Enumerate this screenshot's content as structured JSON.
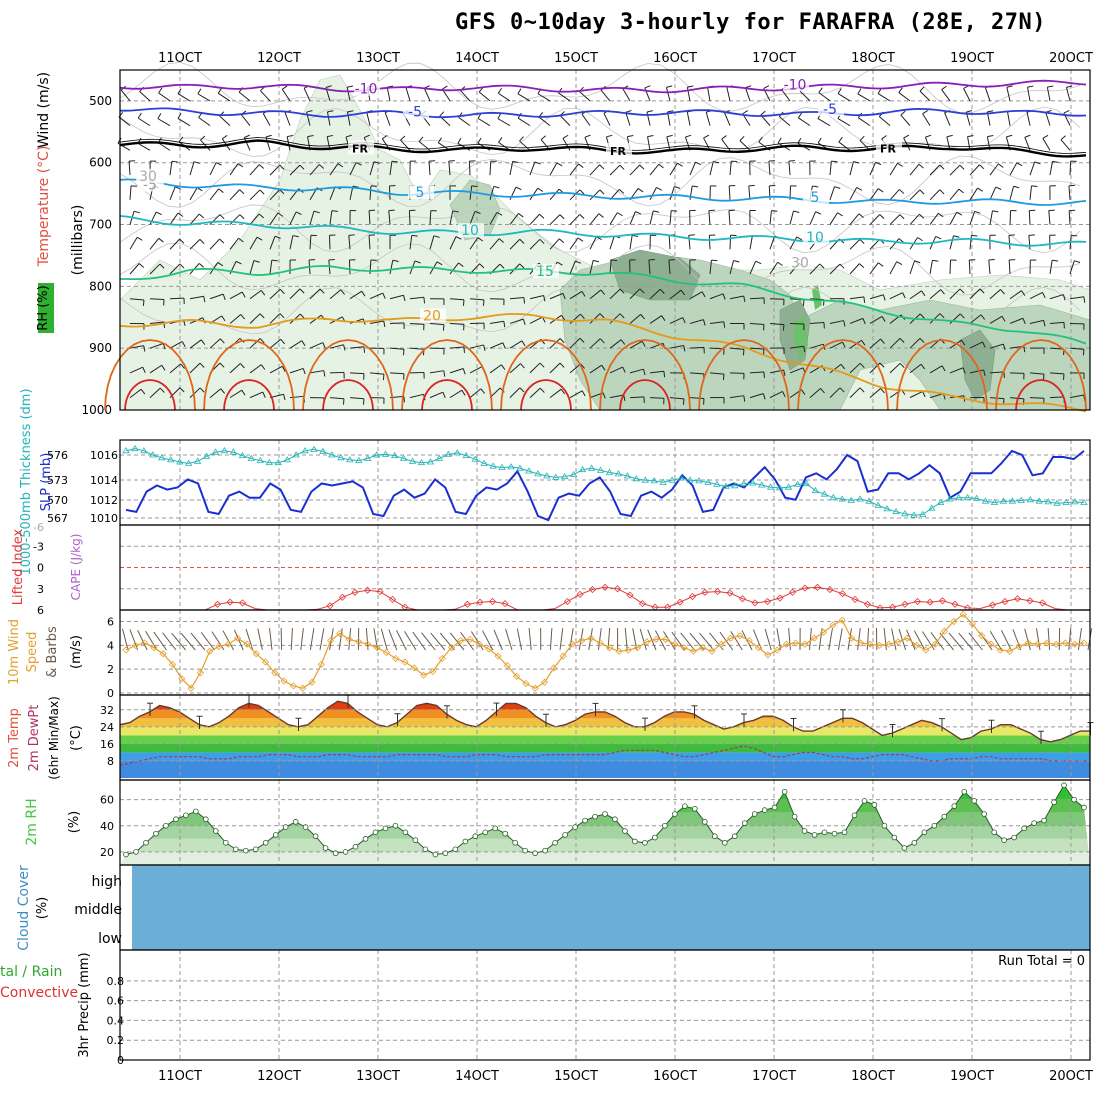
{
  "title": "GFS 0~10day 3-hourly for FARAFRA (28E, 27N)",
  "colors": {
    "temp_minus10": "#8a1fb5",
    "temp_minus5": "#2b3fd6",
    "temp_fr": "#000000",
    "temp_5": "#1e9be0",
    "temp_10": "#1fb8c0",
    "temp_15": "#22c27a",
    "temp_20": "#e49a1a",
    "temp_25": "#e0651a",
    "temp_30": "#dd2222",
    "rh_light": "#e6f3e4",
    "rh_mid": "#bcd6bd",
    "rh_dark": "#8faf92",
    "rh_max": "#6cc26a",
    "slp": "#1b2fd0",
    "thickness": "#25b4b8",
    "lifted": "#e03a3a",
    "wind10": "#e4a030",
    "cloud": "#6baed6",
    "rh2m": "#44c844"
  },
  "chart_data": [
    {
      "id": "upper_air",
      "type": "contour",
      "x_ticks": [
        "11OCT",
        "12OCT",
        "13OCT",
        "14OCT",
        "15OCT",
        "16OCT",
        "17OCT",
        "18OCT",
        "19OCT",
        "20OCT"
      ],
      "y_ticks": [
        "500",
        "600",
        "700",
        "800",
        "900",
        "1000"
      ],
      "ylabel": "(millibars)",
      "side_labels": {
        "rh": "RH (%)",
        "temp": "Temperature (°C)",
        "wind": "Wind (m/s)"
      },
      "contour_labels": [
        "-10",
        "-10",
        "-5",
        "-5",
        "FR",
        "FR",
        "FR",
        "-5",
        "5",
        "5",
        "10",
        "10",
        "15",
        "20",
        "30",
        "30"
      ],
      "isotherms": [
        {
          "name": "-10",
          "mb": [
            476,
            478,
            476,
            480,
            482,
            478,
            480,
            483,
            482,
            480,
            478,
            476,
            474,
            472,
            470
          ]
        },
        {
          "name": "-5",
          "mb": [
            512,
            518,
            520,
            522,
            520,
            524,
            522,
            520,
            518,
            520,
            522,
            518,
            516,
            520,
            520
          ]
        },
        {
          "name": "FR",
          "mb": [
            570,
            572,
            568,
            575,
            578,
            580,
            576,
            580,
            582,
            578,
            576,
            578,
            574,
            582,
            588
          ]
        },
        {
          "name": "5",
          "mb": [
            630,
            636,
            640,
            642,
            648,
            650,
            652,
            654,
            656,
            658,
            660,
            664,
            662,
            664,
            665
          ]
        },
        {
          "name": "10",
          "mb": [
            690,
            698,
            700,
            706,
            712,
            714,
            712,
            716,
            720,
            722,
            724,
            728,
            726,
            730,
            732
          ]
        },
        {
          "name": "15",
          "mb": [
            790,
            775,
            778,
            770,
            772,
            774,
            776,
            778,
            790,
            800,
            820,
            840,
            860,
            870,
            895
          ]
        },
        {
          "name": "20",
          "mb": [
            862,
            858,
            864,
            852,
            856,
            850,
            848,
            856,
            880,
            900,
            930,
            960,
            980,
            990,
            1000
          ]
        }
      ]
    },
    {
      "id": "slp_thickness",
      "type": "line",
      "ylabel_left": "1000-500mb Thickness (dm)",
      "ylabel_right": "SLP (mb)",
      "y_ticks_thickness": [
        "576",
        "573",
        "570",
        "567"
      ],
      "y_ticks_slp": [
        "1016",
        "1014",
        "1012",
        "1010"
      ],
      "series": [
        {
          "name": "SLP (mb)",
          "values": [
            1010.6,
            1010.4,
            1012.4,
            1013.0,
            1012.6,
            1012.8,
            1013.6,
            1013.2,
            1010.4,
            1010.2,
            1012.0,
            1012.4,
            1011.8,
            1011.8,
            1013.2,
            1012.6,
            1010.6,
            1010.4,
            1012.4,
            1013.2,
            1013.0,
            1013.2,
            1013.4,
            1012.8,
            1010.2,
            1010.0,
            1012.0,
            1012.6,
            1011.8,
            1012.2,
            1013.6,
            1012.8,
            1010.4,
            1010.2,
            1012.0,
            1012.8,
            1012.6,
            1013.2,
            1014.4,
            1012.4,
            1010.0,
            1009.6,
            1011.8,
            1012.2,
            1012.0,
            1013.2,
            1013.8,
            1012.4,
            1010.2,
            1010.0,
            1012.0,
            1012.4,
            1011.8,
            1012.6,
            1014.0,
            1013.0,
            1010.4,
            1010.6,
            1012.8,
            1013.2,
            1012.8,
            1013.8,
            1014.8,
            1013.6,
            1011.8,
            1011.6,
            1013.8,
            1014.2,
            1013.6,
            1014.6,
            1016.0,
            1015.4,
            1012.4,
            1012.6,
            1014.2,
            1014.2,
            1013.6,
            1014.2,
            1015.0,
            1014.2,
            1011.8,
            1012.4,
            1014.2,
            1014.2,
            1014.2,
            1015.2,
            1016.4,
            1016.0,
            1014.0,
            1014.2,
            1015.8,
            1015.8,
            1015.6,
            1016.4
          ]
        },
        {
          "name": "Thickness (dm)",
          "values": [
            576.6,
            576.9,
            576.6,
            576.0,
            575.6,
            575.3,
            575.0,
            574.8,
            575.1,
            575.8,
            576.4,
            576.6,
            576.4,
            575.9,
            575.5,
            575.2,
            574.9,
            574.9,
            575.3,
            576.0,
            576.6,
            576.8,
            576.5,
            576.0,
            575.6,
            575.3,
            575.2,
            575.5,
            576.0,
            576.1,
            575.9,
            575.5,
            575.1,
            574.9,
            575.0,
            575.5,
            576.1,
            576.3,
            575.9,
            575.4,
            574.8,
            574.4,
            574.2,
            574.3,
            574.1,
            573.7,
            573.3,
            573.0,
            572.8,
            572.9,
            573.2,
            573.9,
            574.1,
            573.8,
            573.5,
            573.3,
            573.0,
            572.6,
            572.4,
            572.3,
            572.1,
            572.4,
            572.7,
            572.4,
            572.3,
            572.1,
            571.8,
            571.5,
            571.6,
            571.9,
            572.0,
            571.7,
            571.4,
            571.3,
            571.4,
            571.8,
            571.9,
            570.9,
            570.4,
            569.9,
            569.7,
            569.5,
            569.7,
            569.4,
            568.8,
            568.3,
            567.9,
            567.6,
            567.4,
            567.5,
            568.4,
            569.2,
            569.7,
            569.9,
            569.9,
            569.8,
            569.4,
            569.2,
            569.4,
            569.4,
            569.5,
            569.6,
            569.4,
            569.3,
            569.1,
            569.2,
            569.3,
            569.2
          ]
        }
      ]
    },
    {
      "id": "lifted_cape",
      "type": "line",
      "ylabel_left": "Lifted Index",
      "ylabel_right": "CAPE (J/kg)",
      "y_ticks": [
        "-3",
        "0",
        "3",
        "6"
      ],
      "y_range": [
        -6,
        6
      ],
      "series": [
        {
          "name": "Lifted Index",
          "values": [
            6.6,
            6.3,
            6.1,
            6.5,
            7.0,
            6.9,
            6.0,
            5.2,
            4.9,
            5.0,
            5.8,
            6.4,
            6.6,
            6.3,
            6.0,
            5.9,
            5.4,
            4.2,
            3.5,
            3.2,
            3.4,
            4.5,
            5.6,
            6.4,
            6.3,
            6.4,
            5.9,
            5.2,
            4.9,
            4.8,
            5.1,
            6.0,
            6.6,
            6.6,
            5.8,
            4.8,
            3.8,
            3.1,
            2.8,
            3.0,
            3.9,
            5.1,
            5.6,
            5.6,
            4.9,
            4.1,
            3.5,
            3.4,
            3.6,
            4.4,
            5.0,
            4.8,
            4.3,
            3.5,
            2.9,
            2.8,
            3.1,
            3.7,
            4.5,
            5.2,
            5.7,
            5.6,
            5.2,
            4.8,
            4.9,
            4.7,
            5.2,
            5.7,
            5.8,
            5.3,
            4.8,
            4.4,
            4.7,
            5.0,
            5.8,
            6.3,
            6.5
          ]
        }
      ]
    },
    {
      "id": "wind10m",
      "type": "line",
      "ylabel": "10m Wind Speed & Barbs (m/s)",
      "y_ticks": [
        "6",
        "4",
        "2",
        "0"
      ],
      "y_range": [
        0,
        7
      ],
      "series": [
        {
          "name": "10m Wind Speed",
          "values": [
            3.6,
            4.0,
            4.2,
            3.8,
            3.3,
            2.4,
            1.2,
            0.4,
            1.7,
            3.5,
            3.9,
            4.1,
            4.6,
            4.1,
            3.3,
            2.6,
            1.7,
            1.0,
            0.6,
            0.4,
            0.9,
            2.4,
            4.4,
            5.0,
            4.5,
            4.3,
            4.1,
            3.8,
            3.4,
            2.9,
            2.6,
            2.1,
            1.5,
            1.8,
            2.9,
            3.8,
            4.4,
            4.5,
            4.1,
            3.7,
            3.1,
            2.3,
            1.4,
            0.8,
            0.4,
            0.9,
            2.1,
            3.1,
            4.1,
            4.4,
            4.6,
            4.2,
            3.8,
            3.5,
            3.6,
            3.8,
            4.3,
            4.5,
            4.5,
            4.1,
            3.8,
            3.5,
            3.8,
            3.5,
            4.1,
            4.6,
            4.8,
            4.4,
            3.8,
            3.2,
            3.6,
            4.1,
            4.2,
            4.1,
            4.6,
            5.1,
            5.7,
            6.1,
            4.6,
            4.2,
            4.1,
            4.0,
            4.1,
            4.3,
            4.6,
            4.0,
            3.6,
            4.1,
            5.2,
            6.0,
            6.6,
            5.8,
            4.8,
            4.1,
            3.6,
            3.5,
            3.9,
            4.2,
            4.1,
            4.2,
            4.1,
            4.2,
            4.1,
            4.2
          ]
        }
      ]
    },
    {
      "id": "temp_dewpt",
      "type": "area",
      "ylabel": "2m Temp 2m DewPt (6hr Min/Max) (°C)",
      "y_ticks": [
        "32",
        "24",
        "16",
        "8"
      ],
      "y_range": [
        0,
        40
      ],
      "series": [
        {
          "name": "2m Temp",
          "values": [
            25,
            26,
            29,
            31,
            34,
            33,
            31,
            28,
            25,
            24,
            26,
            29,
            33,
            35,
            34,
            31,
            28,
            25,
            24,
            25,
            29,
            33,
            36,
            35,
            31,
            28,
            25,
            24,
            26,
            30,
            34,
            35,
            34,
            30,
            27,
            25,
            24,
            27,
            31,
            35,
            35,
            33,
            29,
            26,
            24,
            25,
            27,
            30,
            31,
            31,
            29,
            26,
            24,
            24,
            26,
            29,
            31,
            31,
            30,
            27,
            25,
            23,
            24,
            26,
            27,
            29,
            29,
            27,
            24,
            22,
            22,
            24,
            26,
            28,
            28,
            26,
            23,
            20,
            21,
            23,
            25,
            27,
            26,
            24,
            21,
            18,
            19,
            22,
            23,
            25,
            25,
            23,
            21,
            18,
            17,
            18,
            20,
            22,
            22
          ]
        },
        {
          "name": "2m DewPt",
          "values": [
            6,
            7,
            8,
            9,
            10,
            10,
            10,
            10,
            10,
            9,
            9,
            9,
            10,
            10,
            10,
            11,
            11,
            11,
            10,
            10,
            10,
            11,
            11,
            11,
            10,
            10,
            10,
            10,
            11,
            11,
            11,
            11,
            11,
            10,
            10,
            10,
            11,
            11,
            11,
            10,
            10,
            10,
            10,
            11,
            11,
            11,
            11,
            11,
            11,
            11,
            12,
            13,
            13,
            13,
            13,
            12,
            11,
            10,
            10,
            11,
            12,
            13,
            14,
            15,
            14,
            12,
            10,
            10,
            11,
            12,
            12,
            11,
            10,
            10,
            9,
            9,
            10,
            11,
            11,
            11,
            10,
            9,
            8,
            8,
            9,
            9,
            9,
            10,
            10,
            9,
            9,
            9,
            9,
            9,
            8,
            8,
            8,
            8,
            8
          ]
        }
      ]
    },
    {
      "id": "rh2m",
      "type": "area",
      "ylabel": "2m RH (%)",
      "y_ticks": [
        "60",
        "40",
        "20"
      ],
      "y_range": [
        10,
        75
      ],
      "series": [
        {
          "name": "2m RH",
          "values": [
            18,
            20,
            27,
            34,
            40,
            45,
            48,
            51,
            45,
            36,
            27,
            22,
            21,
            22,
            27,
            33,
            39,
            43,
            39,
            32,
            23,
            19,
            20,
            24,
            30,
            35,
            38,
            40,
            35,
            29,
            22,
            18,
            19,
            22,
            28,
            32,
            35,
            38,
            34,
            27,
            21,
            19,
            21,
            27,
            33,
            39,
            44,
            47,
            49,
            45,
            36,
            28,
            27,
            31,
            40,
            49,
            55,
            53,
            43,
            32,
            27,
            32,
            42,
            49,
            52,
            54,
            66,
            47,
            36,
            33,
            35,
            34,
            35,
            48,
            59,
            56,
            40,
            31,
            23,
            27,
            35,
            40,
            47,
            55,
            66,
            59,
            49,
            35,
            29,
            31,
            38,
            42,
            44,
            58,
            71,
            60,
            54
          ]
        }
      ]
    },
    {
      "id": "cloud",
      "type": "area",
      "ylabel": "Cloud Cover (%)",
      "y_ticks": [
        "high",
        "middle",
        "low"
      ]
    },
    {
      "id": "precip",
      "type": "bar",
      "ylabel_left1": "tal / Rain",
      "ylabel_left2": "Convective",
      "ylabel": "3hr Precip (mm)",
      "y_ticks": [
        "0.8",
        "0.6",
        "0.4",
        "0.2",
        "0"
      ],
      "y_range": [
        0,
        1
      ],
      "run_total": "Run Total = 0",
      "values": []
    }
  ]
}
